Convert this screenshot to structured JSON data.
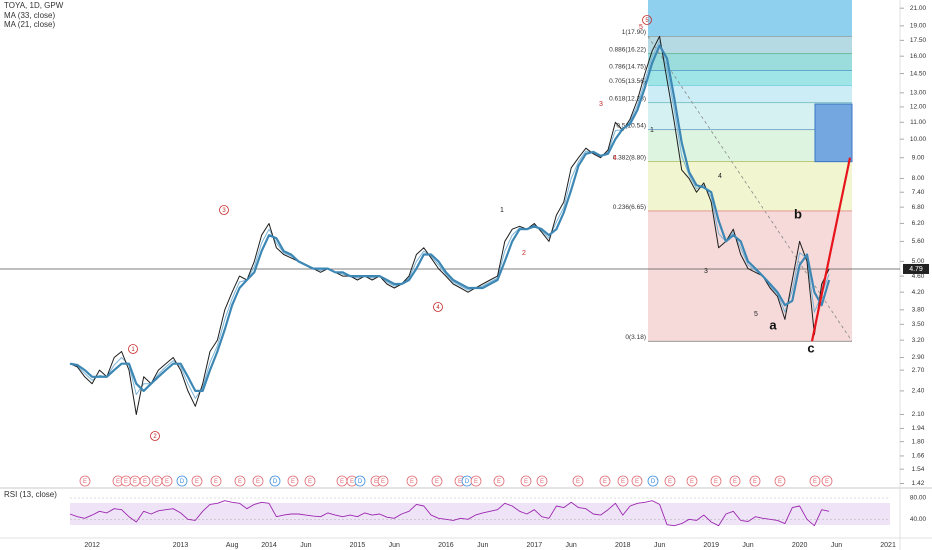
{
  "chart_data": [
    {
      "type": "line",
      "log_scale": true,
      "categories": [
        null,
        null,
        null,
        "2012",
        null,
        null,
        null,
        null,
        null,
        null,
        null,
        null,
        null,
        null,
        null,
        "2013",
        null,
        null,
        null,
        null,
        null,
        null,
        "Aug",
        null,
        null,
        null,
        null,
        "2014",
        null,
        null,
        null,
        null,
        "Jun",
        null,
        null,
        null,
        null,
        null,
        null,
        "2015",
        null,
        null,
        null,
        null,
        "Jun",
        null,
        null,
        null,
        null,
        null,
        null,
        "2016",
        null,
        null,
        null,
        null,
        "Jun",
        null,
        null,
        null,
        null,
        null,
        null,
        "2017",
        null,
        null,
        null,
        null,
        "Jun",
        null,
        null,
        null,
        null,
        null,
        null,
        "2018",
        null,
        null,
        null,
        null,
        "Jun",
        null,
        null,
        null,
        null,
        null,
        null,
        "2019",
        null,
        null,
        null,
        null,
        "Jun",
        null,
        null,
        null,
        null,
        null,
        null,
        "2020",
        null,
        null,
        null,
        null,
        "Jun",
        null,
        null,
        null,
        null,
        null,
        null,
        "2021",
        null,
        null
      ],
      "series": [
        {
          "name": "TOYA, 1D, GPW",
          "color": "#1e1e1e",
          "width": 1,
          "values": [
            2.8,
            2.75,
            2.6,
            2.5,
            2.7,
            2.6,
            2.9,
            3.0,
            2.7,
            2.1,
            2.6,
            2.5,
            2.7,
            2.8,
            2.9,
            2.7,
            2.4,
            2.2,
            2.5,
            3.0,
            3.2,
            3.8,
            4.2,
            4.6,
            4.5,
            5.0,
            5.8,
            6.2,
            5.4,
            5.2,
            5.1,
            5.0,
            4.9,
            4.8,
            4.7,
            4.8,
            4.7,
            4.6,
            4.6,
            4.5,
            4.6,
            4.5,
            4.6,
            4.4,
            4.3,
            4.4,
            4.6,
            5.2,
            5.4,
            5.1,
            4.8,
            4.6,
            4.4,
            4.3,
            4.2,
            4.3,
            4.4,
            4.5,
            4.6,
            5.6,
            6.0,
            6.1,
            6.0,
            6.2,
            5.9,
            5.6,
            6.5,
            7.0,
            8.5,
            9.0,
            9.5,
            9.2,
            9.0,
            9.4,
            11.0,
            10.5,
            11.2,
            12.5,
            14.5,
            16.5,
            17.9,
            14.0,
            11.0,
            8.4,
            8.0,
            7.4,
            7.8,
            7.0,
            5.4,
            5.6,
            6.0,
            5.2,
            4.8,
            4.7,
            4.6,
            4.3,
            4.1,
            3.6,
            4.5,
            5.6,
            5.0,
            3.3,
            4.4,
            4.79,
            null,
            null,
            null,
            null,
            null,
            null,
            null,
            null,
            null,
            null
          ]
        },
        {
          "name": "MA (33, close)",
          "color": "#3d87b5",
          "width": 2.2,
          "values": [
            2.8,
            2.78,
            2.7,
            2.6,
            2.6,
            2.6,
            2.7,
            2.8,
            2.8,
            2.5,
            2.4,
            2.5,
            2.6,
            2.7,
            2.8,
            2.8,
            2.6,
            2.4,
            2.4,
            2.7,
            3.0,
            3.4,
            3.9,
            4.3,
            4.5,
            4.7,
            5.3,
            5.8,
            5.7,
            5.3,
            5.2,
            5.0,
            4.9,
            4.8,
            4.8,
            4.8,
            4.7,
            4.7,
            4.6,
            4.6,
            4.6,
            4.6,
            4.6,
            4.5,
            4.4,
            4.4,
            4.5,
            4.8,
            5.2,
            5.2,
            5.0,
            4.7,
            4.5,
            4.4,
            4.3,
            4.3,
            4.3,
            4.4,
            4.5,
            5.0,
            5.6,
            6.0,
            6.0,
            6.1,
            6.0,
            5.8,
            6.0,
            6.6,
            7.5,
            8.6,
            9.2,
            9.3,
            9.1,
            9.2,
            10.0,
            10.6,
            10.9,
            11.8,
            13.4,
            15.4,
            17.0,
            15.8,
            12.6,
            9.8,
            8.3,
            7.7,
            7.6,
            7.4,
            6.3,
            5.6,
            5.8,
            5.6,
            5.0,
            4.8,
            4.6,
            4.4,
            4.2,
            3.9,
            4.0,
            4.9,
            5.2,
            4.2,
            3.9,
            4.5,
            null,
            null,
            null,
            null,
            null,
            null,
            null,
            null,
            null,
            null
          ]
        },
        {
          "name": "MA (21, close)",
          "color": "#7db4d6",
          "width": 1,
          "values": [
            2.8,
            2.76,
            2.65,
            2.55,
            2.62,
            2.6,
            2.78,
            2.9,
            2.78,
            2.35,
            2.5,
            2.5,
            2.64,
            2.75,
            2.85,
            2.75,
            2.5,
            2.3,
            2.45,
            2.82,
            3.1,
            3.6,
            4.05,
            4.45,
            4.5,
            4.85,
            5.55,
            6.0,
            5.55,
            5.25,
            5.15,
            5.0,
            4.9,
            4.8,
            4.75,
            4.8,
            4.7,
            4.65,
            4.6,
            4.55,
            4.6,
            4.55,
            4.6,
            4.45,
            4.35,
            4.4,
            4.55,
            5.0,
            5.3,
            5.15,
            4.9,
            4.65,
            4.45,
            4.35,
            4.25,
            4.3,
            4.35,
            4.45,
            4.55,
            5.3,
            5.8,
            6.05,
            6.0,
            6.15,
            5.95,
            5.7,
            6.25,
            6.8,
            8.0,
            8.8,
            9.35,
            9.25,
            9.05,
            9.3,
            10.5,
            10.55,
            11.05,
            12.15,
            13.95,
            15.95,
            17.45,
            14.9,
            11.8,
            9.1,
            8.15,
            7.55,
            7.7,
            7.2,
            5.85,
            5.6,
            5.9,
            5.4,
            4.9,
            4.75,
            4.6,
            4.35,
            4.15,
            3.75,
            4.25,
            5.25,
            5.1,
            3.75,
            4.15,
            4.65,
            null,
            null,
            null,
            null,
            null,
            null,
            null,
            null,
            null,
            null
          ]
        }
      ],
      "ylim": [
        1.4,
        22.0
      ],
      "yticks": [
        {
          "value": 21,
          "label": "21.00"
        },
        {
          "value": 19,
          "label": "19.00"
        },
        {
          "value": 17.5,
          "label": "17.50"
        },
        {
          "value": 16,
          "label": "16.00"
        },
        {
          "value": 14.5,
          "label": "14.50"
        },
        {
          "value": 13,
          "label": "13.00"
        },
        {
          "value": 12,
          "label": "12.00"
        },
        {
          "value": 11,
          "label": "11.00"
        },
        {
          "value": 10,
          "label": "10.00"
        },
        {
          "value": 9,
          "label": "9.00"
        },
        {
          "value": 8,
          "label": "8.00"
        },
        {
          "value": 7.4,
          "label": "7.40"
        },
        {
          "value": 6.8,
          "label": "6.80"
        },
        {
          "value": 6.2,
          "label": "6.20"
        },
        {
          "value": 5.6,
          "label": "5.60"
        },
        {
          "value": 5,
          "label": "5.00"
        },
        {
          "value": 4.6,
          "label": "4.60"
        },
        {
          "value": 4.2,
          "label": "4.20"
        },
        {
          "value": 3.8,
          "label": "3.80"
        },
        {
          "value": 3.5,
          "label": "3.50"
        },
        {
          "value": 3.2,
          "label": "3.20"
        },
        {
          "value": 2.9,
          "label": "2.90"
        },
        {
          "value": 2.7,
          "label": "2.70"
        },
        {
          "value": 2.4,
          "label": "2.40"
        },
        {
          "value": 2.1,
          "label": "2.10"
        },
        {
          "value": 1.94,
          "label": "1.94"
        },
        {
          "value": 1.8,
          "label": "1.80"
        },
        {
          "value": 1.66,
          "label": "1.66"
        },
        {
          "value": 1.54,
          "label": "1.54"
        },
        {
          "value": 1.42,
          "label": "1.42"
        }
      ],
      "last_price": {
        "value": 4.79,
        "label": "4.79"
      },
      "fib": {
        "top_fill": "#8fd0ee",
        "levels": [
          {
            "value": 17.9,
            "label": "1(17.90)",
            "color": "#777777",
            "fill": "#a9d3de"
          },
          {
            "value": 16.22,
            "label": "0.886(16.22)",
            "color": "#2e9e4f",
            "fill": "#8ad6d6"
          },
          {
            "value": 14.75,
            "label": "0.786(14.75)",
            "color": "#2a6fb0",
            "fill": "#8ee0e4"
          },
          {
            "value": 13.56,
            "label": "0.705(13.56)",
            "color": "#2ab7c9",
            "fill": "#c3e9f4"
          },
          {
            "value": 12.28,
            "label": "0.618(12.28)",
            "color": "#1f8f8a",
            "fill": "#cfeff0"
          },
          {
            "value": 10.54,
            "label": "0.5(10.54)",
            "color": "#2a6fb0",
            "fill": "#d7f2dc"
          },
          {
            "value": 8.8,
            "label": "0.382(8.80)",
            "color": "#8a9a1a",
            "fill": "#eef5c8"
          },
          {
            "value": 6.65,
            "label": "0.236(6.65)",
            "color": "#d0242f",
            "fill": "#f5d3d3"
          },
          {
            "value": 3.18,
            "label": "0(3.18)",
            "color": "#777777",
            "fill": "#f5d3d3"
          }
        ]
      },
      "target_box": [
        8.8,
        12.2
      ],
      "projection": [
        3.18,
        9.0
      ],
      "circled_labels": [
        "5",
        "1",
        "2",
        "3",
        "4"
      ],
      "wave_labels": [
        {
          "text": "5",
          "color": "#c62828"
        },
        {
          "text": "3",
          "color": "#c62828"
        },
        {
          "text": "4",
          "color": "#c62828"
        },
        {
          "text": "1",
          "color": "#222222"
        },
        {
          "text": "2",
          "color": "#c62828"
        },
        {
          "text": "1",
          "color": "#222222"
        },
        {
          "text": "3",
          "color": "#222222"
        },
        {
          "text": "4",
          "color": "#222222"
        },
        {
          "text": "5",
          "color": "#222222"
        }
      ],
      "abc_labels": [
        "a",
        "b",
        "c"
      ],
      "events": [
        "E",
        "E",
        "E",
        "E",
        "E",
        "E",
        "E",
        "D",
        "E",
        "E",
        "E",
        "E",
        "D",
        "E",
        "E",
        "E",
        "E",
        "D",
        "E",
        "E",
        "E",
        "E",
        "E",
        "D",
        "E",
        "E",
        "E",
        "E",
        "E",
        "E",
        "E",
        "E",
        "D",
        "E",
        "E",
        "E",
        "E",
        "E",
        "E",
        "E",
        "E"
      ],
      "event_colors": {
        "E": "#e06a72",
        "D": "#3d8ee0"
      }
    },
    {
      "type": "line",
      "title": "RSI (13, close)",
      "color": "#9c27b0",
      "ylim": [
        -10,
        95
      ],
      "yticks": [
        {
          "value": 80,
          "label": "80.00"
        },
        {
          "value": 40,
          "label": "40.00"
        }
      ],
      "values": [
        50,
        45,
        42,
        48,
        55,
        52,
        60,
        58,
        45,
        35,
        55,
        50,
        56,
        58,
        60,
        52,
        40,
        38,
        55,
        68,
        70,
        75,
        72,
        70,
        60,
        68,
        72,
        70,
        45,
        48,
        50,
        50,
        48,
        46,
        45,
        52,
        48,
        45,
        48,
        45,
        52,
        48,
        50,
        44,
        42,
        50,
        55,
        68,
        65,
        48,
        42,
        40,
        38,
        42,
        40,
        48,
        52,
        55,
        58,
        70,
        65,
        55,
        50,
        58,
        45,
        42,
        65,
        62,
        72,
        62,
        60,
        50,
        48,
        58,
        70,
        48,
        65,
        70,
        72,
        75,
        68,
        30,
        28,
        32,
        40,
        38,
        48,
        35,
        28,
        50,
        55,
        38,
        36,
        45,
        42,
        40,
        38,
        32,
        62,
        65,
        40,
        28,
        58,
        55,
        null,
        null,
        null,
        null,
        null,
        null,
        null,
        null,
        null,
        null
      ]
    }
  ]
}
